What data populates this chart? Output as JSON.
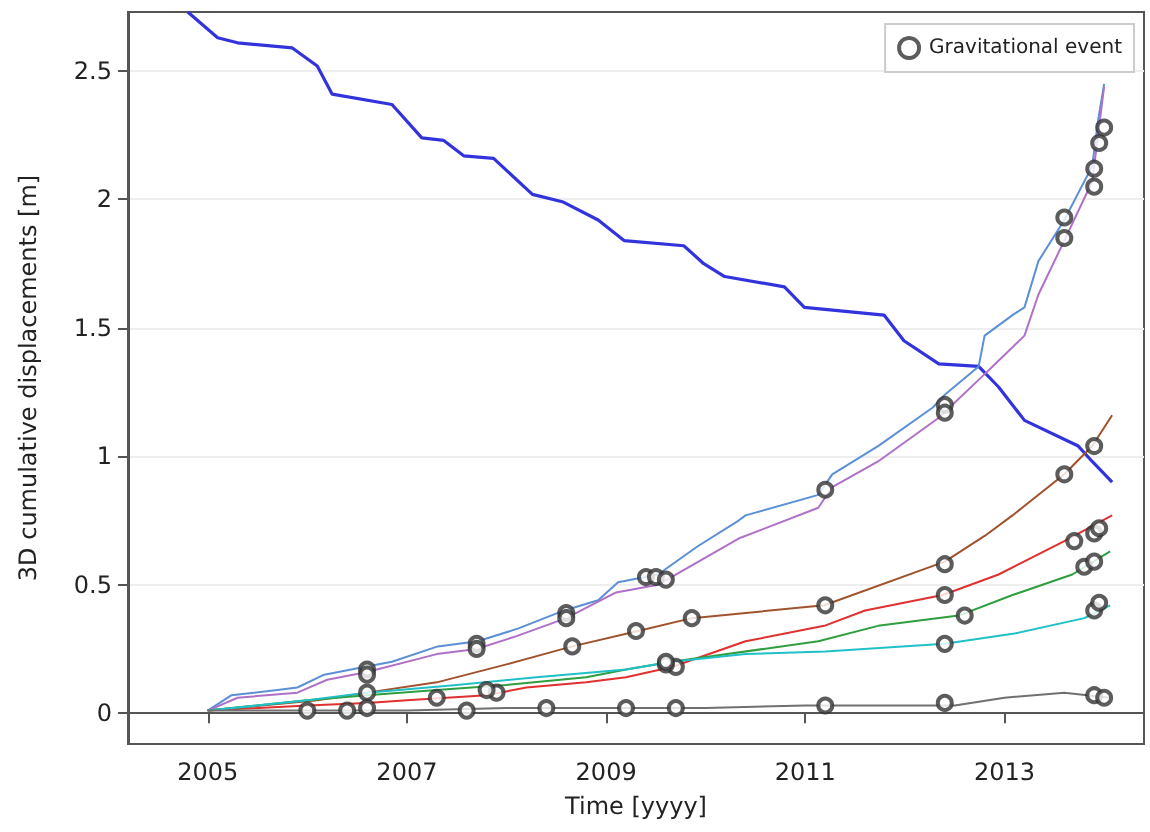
{
  "chart_data": {
    "type": "line",
    "xlabel": "Time [yyyy]",
    "ylabel": "3D cumulative displacements [m]",
    "xlim": [
      2004.2,
      2014.4
    ],
    "ylim": [
      -0.12,
      2.73
    ],
    "xticks": [
      2005,
      2007,
      2009,
      2011,
      2013
    ],
    "yticks": [
      0,
      0.5,
      1,
      1.5,
      2,
      2.5
    ],
    "grid": "y",
    "legend": "top right",
    "line_style": "solid",
    "series": [
      {
        "color": "#3333dd",
        "x": [
          2004.8,
          2005.1,
          2005.3,
          2005.85,
          2006.1,
          2006.25,
          2006.85,
          2007.15,
          2007.37,
          2007.57,
          2007.87,
          2008.26,
          2008.57,
          2008.92,
          2009.18,
          2009.78,
          2009.98,
          2010.19,
          2010.79,
          2010.99,
          2011.79,
          2011.99,
          2012.34,
          2012.74,
          2012.94,
          2013.2,
          2013.74,
          2013.88,
          2014.08
        ],
        "values": [
          2.73,
          2.63,
          2.61,
          2.59,
          2.52,
          2.41,
          2.37,
          2.24,
          2.23,
          2.17,
          2.16,
          2.02,
          1.99,
          1.92,
          1.84,
          1.82,
          1.75,
          1.7,
          1.66,
          1.58,
          1.55,
          1.45,
          1.36,
          1.35,
          1.27,
          1.14,
          1.04,
          0.98,
          0.9
        ]
      },
      {
        "color": "#5b8fd6",
        "x": [
          2005,
          2005.24,
          2005.7,
          2005.9,
          2006.17,
          2006.57,
          2006.85,
          2007.31,
          2007.71,
          2008.12,
          2008.58,
          2008.92,
          2009.12,
          2009.52,
          2009.92,
          2010.33,
          2010.4,
          2011.13,
          2011.27,
          2011.73,
          2012.28,
          2012.4,
          2012.74,
          2012.8,
          2013.08,
          2013.2,
          2013.34,
          2013.6,
          2013.88,
          2013.94,
          2014.0
        ],
        "values": [
          0.01,
          0.07,
          0.09,
          0.1,
          0.15,
          0.18,
          0.2,
          0.26,
          0.28,
          0.33,
          0.4,
          0.44,
          0.51,
          0.54,
          0.65,
          0.75,
          0.77,
          0.85,
          0.93,
          1.04,
          1.19,
          1.24,
          1.35,
          1.47,
          1.55,
          1.58,
          1.76,
          1.92,
          2.13,
          2.31,
          2.45
        ]
      },
      {
        "color": "#b070c8",
        "x": [
          2005,
          2005.3,
          2005.9,
          2006.2,
          2006.6,
          2007.3,
          2007.7,
          2008.1,
          2008.6,
          2009.1,
          2009.52,
          2010.33,
          2011.13,
          2011.27,
          2011.73,
          2012.34,
          2012.8,
          2012.88,
          2013.2,
          2013.34,
          2013.6,
          2013.88,
          2014.0
        ],
        "values": [
          0.01,
          0.06,
          0.08,
          0.13,
          0.16,
          0.23,
          0.25,
          0.3,
          0.37,
          0.47,
          0.5,
          0.68,
          0.8,
          0.88,
          0.98,
          1.15,
          1.32,
          1.35,
          1.47,
          1.63,
          1.84,
          2.07,
          2.44
        ]
      },
      {
        "color": "#a0522d",
        "x": [
          2005,
          2006.1,
          2006.6,
          2007.3,
          2008.0,
          2008.66,
          2009.32,
          2009.86,
          2011.19,
          2012.4,
          2012.8,
          2013.08,
          2013.6,
          2013.88,
          2014.08
        ],
        "values": [
          0.01,
          0.05,
          0.08,
          0.12,
          0.19,
          0.26,
          0.32,
          0.37,
          0.42,
          0.59,
          0.69,
          0.77,
          0.93,
          1.04,
          1.16
        ]
      },
      {
        "color": "#e03030",
        "x": [
          2005,
          2006,
          2006.6,
          2007.0,
          2007.8,
          2008.2,
          2008.8,
          2009.2,
          2009.66,
          2010.4,
          2011.19,
          2011.6,
          2012.38,
          2012.94,
          2013.6,
          2014.08
        ],
        "values": [
          0.01,
          0.03,
          0.04,
          0.05,
          0.07,
          0.1,
          0.12,
          0.14,
          0.18,
          0.28,
          0.34,
          0.4,
          0.46,
          0.54,
          0.67,
          0.77
        ]
      },
      {
        "color": "#2e9e3e",
        "x": [
          2005,
          2006,
          2006.6,
          2007.3,
          2008,
          2008.8,
          2009.2,
          2009.66,
          2011.13,
          2011.73,
          2012.54,
          2013.08,
          2013.68,
          2014.06
        ],
        "values": [
          0.01,
          0.05,
          0.07,
          0.09,
          0.11,
          0.14,
          0.17,
          0.2,
          0.28,
          0.34,
          0.38,
          0.46,
          0.54,
          0.63
        ]
      },
      {
        "color": "#20c0c8",
        "x": [
          2005,
          2006,
          2006.6,
          2007.5,
          2008.3,
          2009.2,
          2009.66,
          2010.4,
          2011.2,
          2012.4,
          2013.1,
          2013.8,
          2014.06
        ],
        "values": [
          0.01,
          0.05,
          0.08,
          0.11,
          0.14,
          0.17,
          0.2,
          0.23,
          0.24,
          0.27,
          0.31,
          0.37,
          0.42
        ]
      },
      {
        "color": "#707070",
        "x": [
          2005,
          2006,
          2007,
          2008,
          2009,
          2010,
          2011,
          2012,
          2012.5,
          2013.0,
          2013.6,
          2014.06
        ],
        "values": [
          0.01,
          0.01,
          0.01,
          0.02,
          0.02,
          0.02,
          0.03,
          0.03,
          0.03,
          0.06,
          0.08,
          0.06
        ]
      },
      {
        "name": "Gravitational event",
        "type": "scatter",
        "marker": "circle",
        "color": "#333333",
        "x": [
          2006.6,
          2006.6,
          2007.7,
          2007.7,
          2008.6,
          2008.6,
          2009.4,
          2009.5,
          2009.6,
          2011.2,
          2012.4,
          2012.4,
          2013.6,
          2013.6,
          2013.9,
          2013.9,
          2013.95,
          2014.0,
          2008.66,
          2009.3,
          2009.86,
          2011.2,
          2012.4,
          2013.6,
          2013.9,
          2007.9,
          2009.7,
          2012.4,
          2013.7,
          2013.9,
          2013.95,
          2007.3,
          2007.8,
          2009.6,
          2012.6,
          2013.8,
          2013.9,
          2006.6,
          2009.6,
          2012.4,
          2013.9,
          2013.95,
          2006.0,
          2006.4,
          2006.6,
          2007.6,
          2008.4,
          2009.2,
          2009.7,
          2011.2,
          2012.4,
          2013.9,
          2014.0
        ],
        "values": [
          0.17,
          0.15,
          0.27,
          0.25,
          0.39,
          0.37,
          0.53,
          0.53,
          0.52,
          0.87,
          1.2,
          1.17,
          1.93,
          1.85,
          2.05,
          2.12,
          2.22,
          2.28,
          0.26,
          0.32,
          0.37,
          0.42,
          0.58,
          0.93,
          1.04,
          0.08,
          0.18,
          0.46,
          0.67,
          0.7,
          0.72,
          0.06,
          0.09,
          0.19,
          0.38,
          0.57,
          0.59,
          0.08,
          0.2,
          0.27,
          0.4,
          0.43,
          0.01,
          0.01,
          0.02,
          0.01,
          0.02,
          0.02,
          0.02,
          0.03,
          0.04,
          0.07,
          0.06
        ]
      }
    ]
  }
}
